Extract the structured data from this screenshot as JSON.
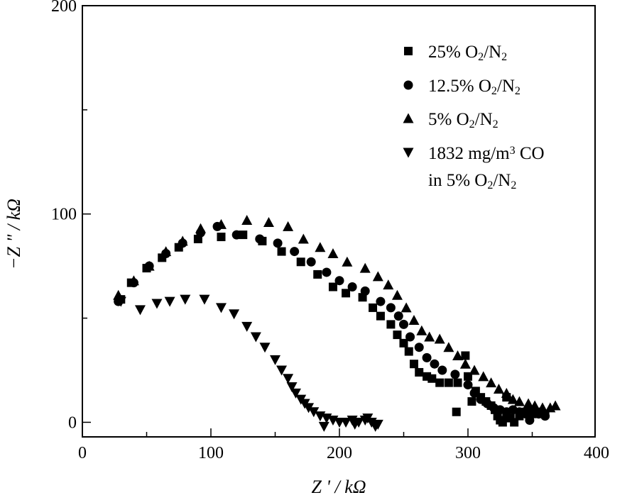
{
  "chart_data": {
    "type": "scatter",
    "title": "",
    "xlabel": "Z ' / kΩ",
    "ylabel": "−Z \" / kΩ",
    "xlim": [
      0,
      400
    ],
    "ylim": [
      -7,
      200
    ],
    "x_ticks": [
      0,
      100,
      200,
      300,
      400
    ],
    "y_ticks": [
      0,
      100,
      200
    ],
    "grid": false,
    "legend_position": "top-right",
    "series": [
      {
        "name": "25% O₂/N₂",
        "marker": "square",
        "points": [
          [
            30,
            59
          ],
          [
            38,
            67
          ],
          [
            50,
            74
          ],
          [
            62,
            79
          ],
          [
            75,
            84
          ],
          [
            90,
            88
          ],
          [
            108,
            89
          ],
          [
            125,
            90
          ],
          [
            140,
            87
          ],
          [
            155,
            82
          ],
          [
            170,
            77
          ],
          [
            183,
            71
          ],
          [
            195,
            65
          ],
          [
            205,
            62
          ],
          [
            218,
            60
          ],
          [
            226,
            55
          ],
          [
            232,
            51
          ],
          [
            240,
            47
          ],
          [
            245,
            42
          ],
          [
            250,
            38
          ],
          [
            254,
            34
          ],
          [
            258,
            28
          ],
          [
            262,
            24
          ],
          [
            268,
            22
          ],
          [
            272,
            21
          ],
          [
            278,
            19
          ],
          [
            285,
            19
          ],
          [
            292,
            19
          ],
          [
            300,
            22
          ],
          [
            306,
            15
          ],
          [
            310,
            12
          ],
          [
            314,
            10
          ],
          [
            318,
            8
          ],
          [
            321,
            6
          ],
          [
            323,
            3
          ],
          [
            325,
            1
          ],
          [
            327,
            0
          ],
          [
            330,
            4
          ],
          [
            333,
            2
          ],
          [
            336,
            0
          ],
          [
            340,
            3
          ],
          [
            345,
            5
          ],
          [
            350,
            4
          ],
          [
            355,
            5
          ],
          [
            360,
            4
          ],
          [
            298,
            32
          ],
          [
            291,
            5
          ],
          [
            303,
            10
          ],
          [
            330,
            12
          ]
        ]
      },
      {
        "name": "12.5% O₂/N₂",
        "marker": "circle",
        "points": [
          [
            28,
            58
          ],
          [
            40,
            67
          ],
          [
            52,
            75
          ],
          [
            65,
            81
          ],
          [
            78,
            86
          ],
          [
            92,
            91
          ],
          [
            105,
            94
          ],
          [
            120,
            90
          ],
          [
            138,
            88
          ],
          [
            152,
            86
          ],
          [
            165,
            82
          ],
          [
            178,
            77
          ],
          [
            190,
            72
          ],
          [
            200,
            68
          ],
          [
            210,
            65
          ],
          [
            220,
            63
          ],
          [
            232,
            58
          ],
          [
            240,
            55
          ],
          [
            246,
            51
          ],
          [
            250,
            47
          ],
          [
            255,
            41
          ],
          [
            262,
            36
          ],
          [
            268,
            31
          ],
          [
            274,
            28
          ],
          [
            280,
            25
          ],
          [
            290,
            23
          ],
          [
            300,
            18
          ],
          [
            305,
            14
          ],
          [
            310,
            11
          ],
          [
            315,
            9
          ],
          [
            320,
            7
          ],
          [
            325,
            6
          ],
          [
            330,
            5
          ],
          [
            335,
            6
          ],
          [
            340,
            5
          ],
          [
            345,
            4
          ],
          [
            350,
            5
          ],
          [
            355,
            4
          ],
          [
            360,
            3
          ],
          [
            348,
            1
          ]
        ]
      },
      {
        "name": "5% O₂/N₂",
        "marker": "triangle-up",
        "points": [
          [
            28,
            61
          ],
          [
            40,
            68
          ],
          [
            52,
            75
          ],
          [
            65,
            82
          ],
          [
            78,
            87
          ],
          [
            92,
            93
          ],
          [
            108,
            95
          ],
          [
            128,
            97
          ],
          [
            145,
            96
          ],
          [
            160,
            94
          ],
          [
            172,
            88
          ],
          [
            185,
            84
          ],
          [
            195,
            81
          ],
          [
            206,
            77
          ],
          [
            220,
            74
          ],
          [
            230,
            70
          ],
          [
            238,
            66
          ],
          [
            245,
            61
          ],
          [
            252,
            55
          ],
          [
            258,
            49
          ],
          [
            264,
            44
          ],
          [
            270,
            41
          ],
          [
            278,
            40
          ],
          [
            285,
            36
          ],
          [
            292,
            32
          ],
          [
            298,
            28
          ],
          [
            305,
            25
          ],
          [
            312,
            22
          ],
          [
            318,
            19
          ],
          [
            324,
            16
          ],
          [
            330,
            14
          ],
          [
            335,
            11
          ],
          [
            340,
            10
          ],
          [
            347,
            9
          ],
          [
            352,
            8
          ],
          [
            358,
            7
          ],
          [
            364,
            7
          ],
          [
            368,
            8
          ]
        ]
      },
      {
        "name": "1832 mg/m³ CO in 5% O₂/N₂",
        "marker": "triangle-down",
        "points": [
          [
            30,
            58
          ],
          [
            45,
            54
          ],
          [
            58,
            57
          ],
          [
            68,
            58
          ],
          [
            80,
            59
          ],
          [
            95,
            59
          ],
          [
            108,
            55
          ],
          [
            118,
            52
          ],
          [
            128,
            46
          ],
          [
            135,
            41
          ],
          [
            142,
            36
          ],
          [
            150,
            30
          ],
          [
            155,
            25
          ],
          [
            160,
            21
          ],
          [
            163,
            17
          ],
          [
            166,
            14
          ],
          [
            170,
            11
          ],
          [
            173,
            9
          ],
          [
            176,
            7
          ],
          [
            180,
            5
          ],
          [
            185,
            3
          ],
          [
            190,
            2
          ],
          [
            195,
            1
          ],
          [
            200,
            0
          ],
          [
            205,
            0
          ],
          [
            210,
            1
          ],
          [
            215,
            0
          ],
          [
            220,
            1
          ],
          [
            225,
            0
          ],
          [
            230,
            -1
          ],
          [
            188,
            -2
          ],
          [
            212,
            -1
          ],
          [
            222,
            2
          ],
          [
            228,
            -2
          ]
        ]
      }
    ],
    "legend_labels": [
      {
        "parts": [
          {
            "t": "25% O"
          },
          {
            "t": "2",
            "sub": true
          },
          {
            "t": "/N"
          },
          {
            "t": "2",
            "sub": true
          }
        ]
      },
      {
        "parts": [
          {
            "t": "12.5% O"
          },
          {
            "t": "2",
            "sub": true
          },
          {
            "t": "/N"
          },
          {
            "t": "2",
            "sub": true
          }
        ]
      },
      {
        "parts": [
          {
            "t": "5% O"
          },
          {
            "t": "2",
            "sub": true
          },
          {
            "t": "/N"
          },
          {
            "t": "2",
            "sub": true
          }
        ]
      },
      {
        "parts": [
          {
            "t": "1832 mg/m"
          },
          {
            "t": "3",
            "sup": true
          },
          {
            "t": " CO"
          }
        ],
        "line2": [
          {
            "t": "in 5% O"
          },
          {
            "t": "2",
            "sub": true
          },
          {
            "t": "/N"
          },
          {
            "t": "2",
            "sub": true
          }
        ]
      }
    ]
  }
}
